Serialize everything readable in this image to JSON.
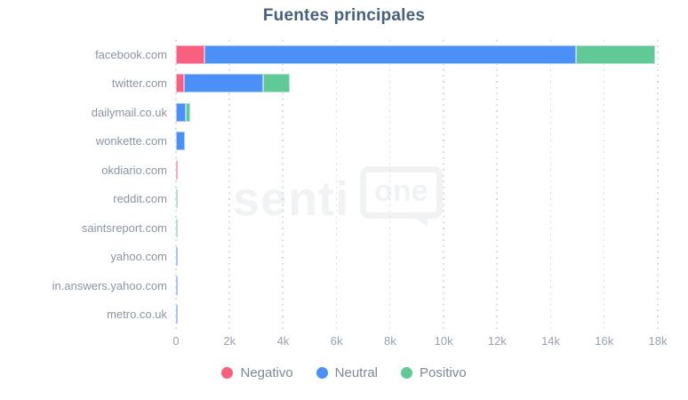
{
  "chart_data": {
    "type": "bar",
    "orientation": "horizontal",
    "stacked": true,
    "title": "Fuentes principales",
    "xlabel": "",
    "ylabel": "",
    "xlim": [
      0,
      18000
    ],
    "grid": "dotted-vertical",
    "legend_position": "bottom",
    "categories": [
      "facebook.com",
      "twitter.com",
      "dailymail.co.uk",
      "wonkette.com",
      "okdiario.com",
      "reddit.com",
      "saintsreport.com",
      "yahoo.com",
      "in.answers.yahoo.com",
      "metro.co.uk"
    ],
    "series": [
      {
        "name": "Negativo",
        "color": "#f95f7e",
        "border": "#fcaabd",
        "values": [
          1050,
          310,
          0,
          0,
          50,
          0,
          0,
          0,
          0,
          0
        ]
      },
      {
        "name": "Neutral",
        "color": "#4a90f7",
        "border": "#a6c8fb",
        "values": [
          13900,
          2950,
          370,
          320,
          0,
          0,
          0,
          40,
          40,
          30
        ]
      },
      {
        "name": "Positivo",
        "color": "#61c995",
        "border": "#b2e3cc",
        "values": [
          2950,
          1000,
          150,
          0,
          0,
          50,
          40,
          0,
          0,
          0
        ]
      }
    ],
    "x_ticks": [
      "0",
      "2k",
      "4k",
      "6k",
      "8k",
      "10k",
      "12k",
      "14k",
      "16k",
      "18k"
    ],
    "x_tick_values": [
      0,
      2000,
      4000,
      6000,
      8000,
      10000,
      12000,
      14000,
      16000,
      18000
    ]
  },
  "watermark": {
    "text_left": "senti",
    "text_boxed": "one"
  },
  "colors": {
    "title": "#46617e",
    "category_label": "#8a94a4",
    "tick_label": "#98a1b1",
    "legend_label": "#7d8897",
    "gridline": "#d2d6dd",
    "watermark": "#f1f2f4",
    "background": "#ffffff"
  }
}
